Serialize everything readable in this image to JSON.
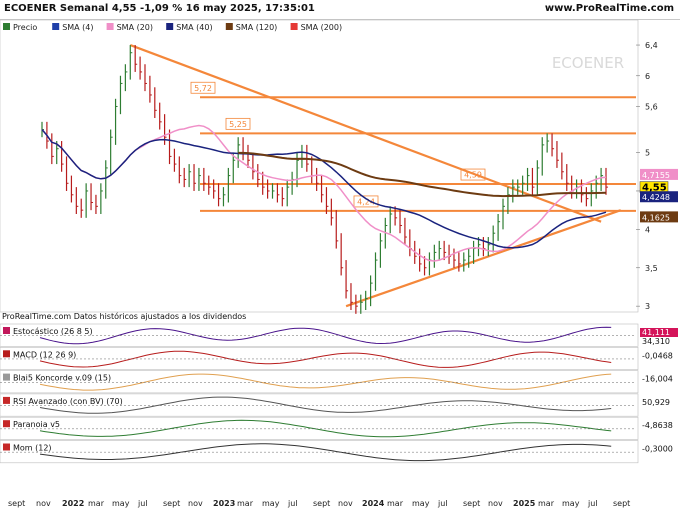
{
  "header": {
    "title": "ECOENER Semanal 4,55 -1,09 % 16 may 2025, 17:35:01",
    "site": "www.ProRealTime.com"
  },
  "legend": [
    {
      "label": "Precio",
      "color": "#2e7d32"
    },
    {
      "label": "SMA (4)",
      "color": "#1f3fa8"
    },
    {
      "label": "SMA (20)",
      "color": "#f08fc8"
    },
    {
      "label": "SMA (40)",
      "color": "#1a237e"
    },
    {
      "label": "SMA (120)",
      "color": "#6d3b12"
    },
    {
      "label": "SMA (200)",
      "color": "#e53935"
    }
  ],
  "watermark": "ECOENER",
  "footer_note": "ProRealTime.com  Datos históricos ajustados a los dividendos",
  "chart_data": {
    "type": "line",
    "y_ticks": [
      "6,4",
      "6",
      "5,6",
      "5",
      "4,5",
      "4",
      "3,5",
      "3"
    ],
    "x_ticks": [
      "sept",
      "nov",
      "2022",
      "mar",
      "may",
      "jul",
      "sept",
      "nov",
      "2023",
      "mar",
      "may",
      "jul",
      "sept",
      "nov",
      "2024",
      "mar",
      "may",
      "jul",
      "sept",
      "nov",
      "2025",
      "mar",
      "may",
      "jul",
      "sept"
    ],
    "close_weekly": [
      5.3,
      5.15,
      4.95,
      5.05,
      4.85,
      4.6,
      4.45,
      4.3,
      4.25,
      4.5,
      4.35,
      4.3,
      4.5,
      4.8,
      5.2,
      5.6,
      5.9,
      6.05,
      6.3,
      6.15,
      6.05,
      5.9,
      5.75,
      5.55,
      5.4,
      5.2,
      4.95,
      4.85,
      4.7,
      4.65,
      4.75,
      4.6,
      4.7,
      4.6,
      4.55,
      4.5,
      4.4,
      4.45,
      4.7,
      4.9,
      5.1,
      5.0,
      4.9,
      4.75,
      4.65,
      4.55,
      4.5,
      4.5,
      4.45,
      4.4,
      4.55,
      4.65,
      4.9,
      5.0,
      4.85,
      4.7,
      4.6,
      4.45,
      4.3,
      4.15,
      3.85,
      3.5,
      3.2,
      3.05,
      3.0,
      3.05,
      3.1,
      3.3,
      3.6,
      3.85,
      4.05,
      4.2,
      4.15,
      4.05,
      3.9,
      3.75,
      3.65,
      3.55,
      3.5,
      3.6,
      3.7,
      3.75,
      3.7,
      3.65,
      3.6,
      3.55,
      3.6,
      3.65,
      3.75,
      3.8,
      3.75,
      3.8,
      3.95,
      4.1,
      4.3,
      4.45,
      4.55,
      4.55,
      4.6,
      4.7,
      4.55,
      4.8,
      5.1,
      5.15,
      5.05,
      4.9,
      4.75,
      4.6,
      4.5,
      4.55,
      4.45,
      4.4,
      4.5,
      4.6,
      4.7,
      4.55
    ],
    "sma": [
      {
        "name": "SMA (20)",
        "color": "#f08fc8",
        "window": 20
      },
      {
        "name": "SMA (40)",
        "color": "#1a237e",
        "window": 40
      },
      {
        "name": "SMA (120)",
        "color": "#6d3b12",
        "window": 120
      }
    ],
    "price_labels": [
      {
        "text": "5,72",
        "y": 5.72
      },
      {
        "text": "5,25",
        "y": 5.25
      },
      {
        "text": "4,59",
        "y": 4.59
      },
      {
        "text": "4,24",
        "y": 4.24
      }
    ],
    "axis_flags": [
      {
        "text": "4,7155",
        "y": 4.7155,
        "color": "#f08fc8"
      },
      {
        "text": "4,55",
        "y": 4.55,
        "color": "#ffe600"
      },
      {
        "text": "4,4248",
        "y": 4.4248,
        "color": "#1a237e"
      },
      {
        "text": "4,1625",
        "y": 4.1625,
        "color": "#6d3b12"
      }
    ],
    "horizontal_levels": [
      5.72,
      5.25,
      4.59,
      4.24
    ],
    "trend_lines": [
      {
        "from": [
          18,
          6.4
        ],
        "to": [
          114,
          4.1
        ]
      },
      {
        "from": [
          62,
          3.0
        ],
        "to": [
          118,
          4.25
        ]
      }
    ],
    "ylim": [
      2.95,
      6.7
    ]
  },
  "indicators": [
    {
      "label": "Estocástico (26 8 5)",
      "values": [
        "41,111",
        "34,310"
      ]
    },
    {
      "label": "MACD (12 26 9)",
      "values": [
        "-0,0468"
      ]
    },
    {
      "label": "Blai5 Koncorde v.09 (15)",
      "values": [
        "-16,004"
      ]
    },
    {
      "label": "RSI Avanzado (con BV) (70)",
      "values": [
        "50,929"
      ]
    },
    {
      "label": "Paranoia v5",
      "values": [
        "-4,8638"
      ]
    },
    {
      "label": "Mom (12)",
      "values": [
        "-0,3000"
      ]
    }
  ]
}
